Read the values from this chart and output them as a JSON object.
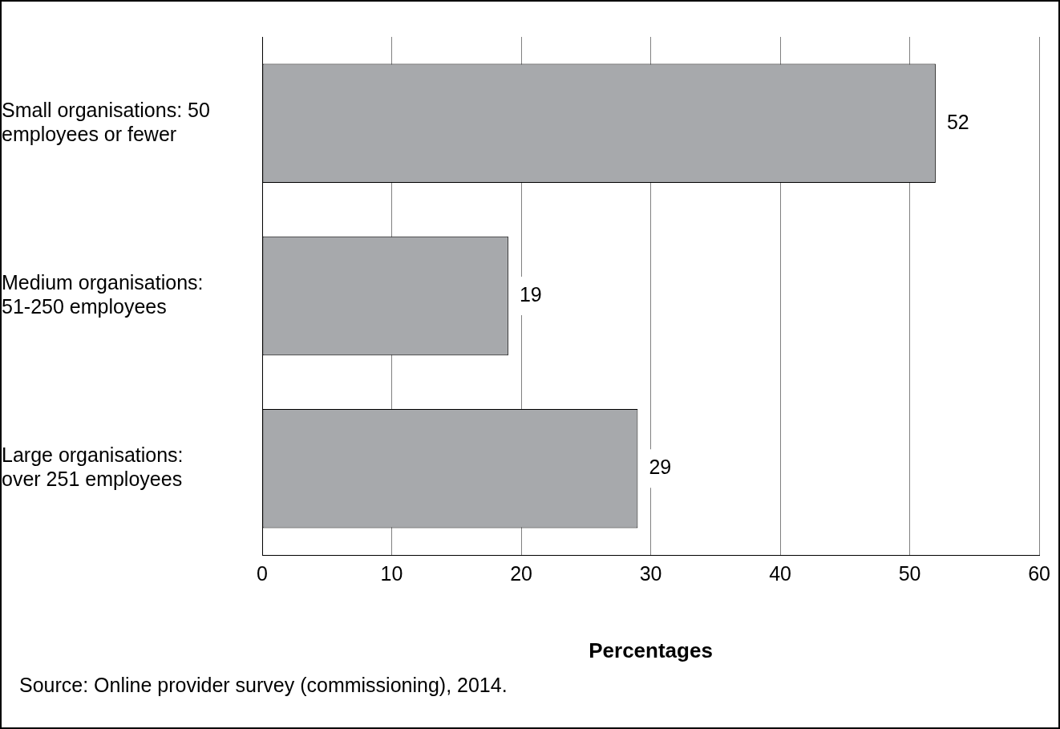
{
  "chart_data": {
    "type": "bar",
    "orientation": "horizontal",
    "categories": [
      "Small organisations: 50 employees or fewer",
      "Medium organisations: 51-250 employees",
      "Large organisations: over 251 employees"
    ],
    "values": [
      52,
      19,
      29
    ],
    "color": "#a7a9ac",
    "xlim": [
      0,
      60
    ],
    "xticks": [
      0,
      10,
      20,
      30,
      40,
      50,
      60
    ],
    "xlabel": "Percentages",
    "grid": "x",
    "data_labels": true,
    "annotations": [
      "Source: Online provider survey (commissioning), 2014."
    ]
  }
}
